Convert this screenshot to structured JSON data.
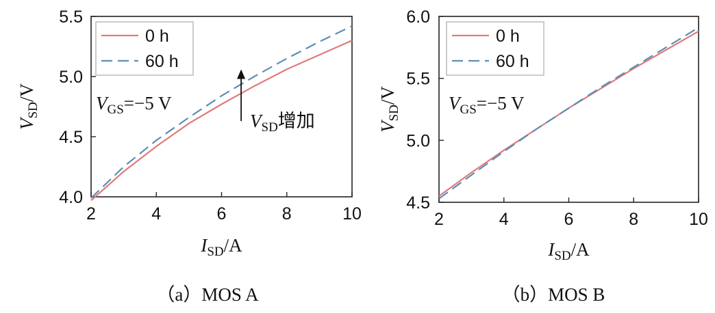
{
  "chart_data": [
    {
      "type": "line",
      "caption": "（a）MOS A",
      "xlabel_main": "I",
      "xlabel_sub": "SD",
      "xlabel_unit": "/A",
      "ylabel_main": "V",
      "ylabel_sub": "SD",
      "ylabel_unit": "/V",
      "xlim": [
        2,
        10
      ],
      "ylim": [
        4.0,
        5.5
      ],
      "xticks": [
        "2",
        "4",
        "6",
        "8",
        "10"
      ],
      "yticks": [
        "4.0",
        "4.5",
        "5.0",
        "5.5"
      ],
      "x": [
        2,
        3,
        4,
        5,
        6,
        7,
        8,
        9,
        10
      ],
      "series": [
        {
          "name": "0 h",
          "color": "#e07a7a",
          "dash": "solid",
          "values": [
            3.97,
            4.21,
            4.42,
            4.61,
            4.77,
            4.92,
            5.06,
            5.18,
            5.3
          ]
        },
        {
          "name": "60 h",
          "color": "#5b8fb5",
          "dash": "dashed",
          "values": [
            3.99,
            4.25,
            4.47,
            4.66,
            4.84,
            5.0,
            5.15,
            5.29,
            5.42
          ]
        }
      ],
      "annotation_cond_main": "V",
      "annotation_cond_sub": "GS",
      "annotation_cond_rest": "=−5 V",
      "annotation_arrow_main": "V",
      "annotation_arrow_sub": "SD",
      "annotation_arrow_rest": "增加",
      "arrow": {
        "x": 6.6,
        "y_from": 4.63,
        "y_to": 5.06
      },
      "legend": "top-left",
      "grid": false
    },
    {
      "type": "line",
      "caption": "（b）MOS B",
      "xlabel_main": "I",
      "xlabel_sub": "SD",
      "xlabel_unit": "/A",
      "ylabel_main": "V",
      "ylabel_sub": "SD",
      "ylabel_unit": "/V",
      "xlim": [
        2,
        10
      ],
      "ylim": [
        4.5,
        6.0
      ],
      "xticks": [
        "2",
        "4",
        "6",
        "8",
        "10"
      ],
      "yticks": [
        "4.5",
        "5.0",
        "5.5",
        "6.0"
      ],
      "x": [
        2,
        3,
        4,
        5,
        6,
        7,
        8,
        9,
        10
      ],
      "series": [
        {
          "name": "0 h",
          "color": "#e07a7a",
          "dash": "solid",
          "values": [
            4.55,
            4.74,
            4.92,
            5.09,
            5.26,
            5.42,
            5.58,
            5.73,
            5.88
          ]
        },
        {
          "name": "60 h",
          "color": "#5b8fb5",
          "dash": "dashed",
          "values": [
            4.53,
            4.72,
            4.91,
            5.09,
            5.26,
            5.43,
            5.59,
            5.75,
            5.91
          ]
        }
      ],
      "annotation_cond_main": "V",
      "annotation_cond_sub": "GS",
      "annotation_cond_rest": "=−5 V",
      "legend": "top-left",
      "grid": false
    }
  ]
}
